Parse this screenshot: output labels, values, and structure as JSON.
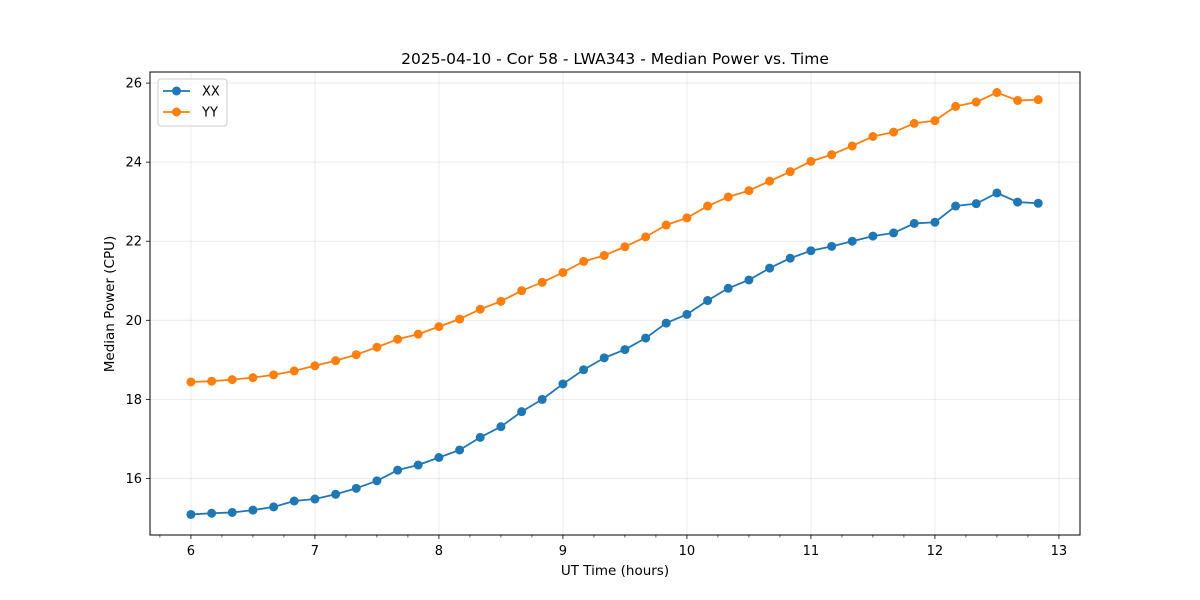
{
  "chart_data": {
    "type": "line",
    "title": "2025-04-10 - Cor 58 - LWA343 - Median Power vs. Time",
    "xlabel": "UT Time (hours)",
    "ylabel": "Median Power (CPU)",
    "xlim": [
      5.67,
      13.17
    ],
    "ylim": [
      14.57,
      26.28
    ],
    "xticks": [
      6,
      7,
      8,
      9,
      10,
      11,
      12,
      13
    ],
    "yticks": [
      16,
      18,
      20,
      22,
      24,
      26
    ],
    "x_minor_step": 0.25,
    "grid": true,
    "legend_position": "top-left",
    "x": [
      6.0,
      6.167,
      6.333,
      6.5,
      6.667,
      6.833,
      7.0,
      7.167,
      7.333,
      7.5,
      7.667,
      7.833,
      8.0,
      8.167,
      8.333,
      8.5,
      8.667,
      8.833,
      9.0,
      9.167,
      9.333,
      9.5,
      9.667,
      9.833,
      10.0,
      10.167,
      10.333,
      10.5,
      10.667,
      10.833,
      11.0,
      11.167,
      11.333,
      11.5,
      11.667,
      11.833,
      12.0,
      12.167,
      12.333,
      12.5,
      12.667,
      12.833
    ],
    "series": [
      {
        "name": "XX",
        "color": "#1f77b4",
        "values": [
          15.09,
          15.12,
          15.14,
          15.2,
          15.28,
          15.43,
          15.48,
          15.6,
          15.75,
          15.94,
          16.21,
          16.34,
          16.53,
          16.72,
          17.04,
          17.31,
          17.69,
          18.0,
          18.39,
          18.75,
          19.05,
          19.26,
          19.55,
          19.93,
          20.15,
          20.5,
          20.81,
          21.02,
          21.32,
          21.57,
          21.76,
          21.87,
          22.0,
          22.13,
          22.21,
          22.45,
          22.48,
          22.89,
          22.95,
          23.22,
          22.99,
          22.96
        ]
      },
      {
        "name": "YY",
        "color": "#ff7f0e",
        "values": [
          18.44,
          18.46,
          18.5,
          18.55,
          18.62,
          18.72,
          18.85,
          18.98,
          19.13,
          19.32,
          19.52,
          19.65,
          19.84,
          20.03,
          20.28,
          20.48,
          20.75,
          20.96,
          21.21,
          21.49,
          21.64,
          21.86,
          22.11,
          22.41,
          22.59,
          22.89,
          23.12,
          23.28,
          23.52,
          23.76,
          24.02,
          24.19,
          24.41,
          24.65,
          24.76,
          24.98,
          25.05,
          25.41,
          25.52,
          25.76,
          25.56,
          25.58
        ]
      }
    ]
  }
}
